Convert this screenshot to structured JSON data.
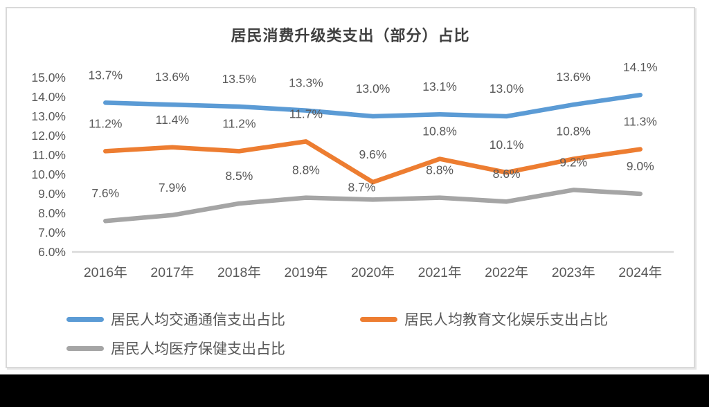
{
  "chart_data": {
    "type": "line",
    "title": "居民消费升级类支出（部分）占比",
    "categories": [
      "2016年",
      "2017年",
      "2018年",
      "2019年",
      "2020年",
      "2021年",
      "2022年",
      "2023年",
      "2024年"
    ],
    "series": [
      {
        "name": "居民人均交通通信支出占比",
        "color": "#5B9BD5",
        "values": [
          13.7,
          13.6,
          13.5,
          13.3,
          13.0,
          13.1,
          13.0,
          13.6,
          14.1
        ],
        "labels": [
          "13.7%",
          "13.6%",
          "13.5%",
          "13.3%",
          "13.0%",
          "13.1%",
          "13.0%",
          "13.6%",
          "14.1%"
        ]
      },
      {
        "name": "居民人均教育文化娱乐支出占比",
        "color": "#ED7D31",
        "values": [
          11.2,
          11.4,
          11.2,
          11.7,
          9.6,
          10.8,
          10.1,
          10.8,
          11.3
        ],
        "labels": [
          "11.2%",
          "11.4%",
          "11.2%",
          "11.7%",
          "9.6%",
          "10.8%",
          "10.1%",
          "10.8%",
          "11.3%"
        ]
      },
      {
        "name": "居民人均医疗保健支出占比",
        "color": "#A5A5A5",
        "values": [
          7.6,
          7.9,
          8.5,
          8.8,
          8.7,
          8.8,
          8.6,
          9.2,
          9.0
        ],
        "labels": [
          "7.6%",
          "7.9%",
          "8.5%",
          "8.8%",
          "8.7%",
          "8.8%",
          "8.6%",
          "9.2%",
          "9.0%"
        ]
      }
    ],
    "y_axis": {
      "min": 6.0,
      "max": 15.0,
      "step": 1.0,
      "tick_labels": [
        "15.0%",
        "14.0%",
        "13.0%",
        "12.0%",
        "11.0%",
        "10.0%",
        "9.0%",
        "8.0%",
        "7.0%",
        "6.0%"
      ]
    },
    "legend_position": "bottom",
    "grid": false,
    "colors": {
      "label_text": "#595959",
      "axis_text": "#595959",
      "title_text": "#404040",
      "axis_line": "#d9d9d9"
    }
  }
}
